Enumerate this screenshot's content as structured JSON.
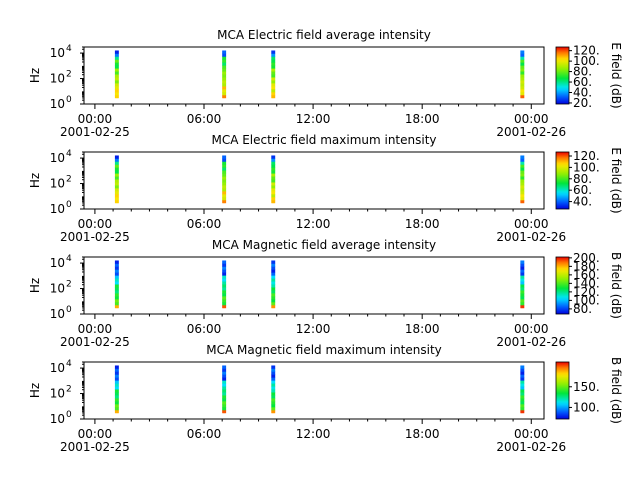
{
  "chart_data": [
    {
      "type": "heatmap",
      "title": "MCA  Electric field average intensity",
      "ylabel": "Hz",
      "yscale": "log",
      "ylim": [
        1,
        30000
      ],
      "y_ticks": [
        {
          "base": "10",
          "exp": "0"
        },
        {
          "base": "10",
          "exp": "2"
        },
        {
          "base": "10",
          "exp": "4"
        }
      ],
      "x_ticks": [
        "00:00",
        "06:00",
        "12:00",
        "18:00",
        "00:00"
      ],
      "x_dates": [
        {
          "at": "00:00",
          "date": "2001-02-25"
        },
        {
          "at": "00:00",
          "date": "2001-02-26"
        }
      ],
      "xlim_hours": [
        -0.6,
        24.7
      ],
      "colorbar": {
        "label": "E field (dB)",
        "range": [
          18,
          127
        ],
        "ticks": [
          "20.",
          "40.",
          "60.",
          "80.",
          "100.",
          "120."
        ]
      },
      "data_intervals_hours": [
        [
          1.1,
          1.3
        ],
        [
          7.0,
          7.2
        ],
        [
          9.7,
          9.9
        ],
        [
          23.4,
          23.6
        ]
      ],
      "profile": "electric"
    },
    {
      "type": "heatmap",
      "title": "MCA  Electric field maximum intensity",
      "ylabel": "Hz",
      "yscale": "log",
      "ylim": [
        1,
        30000
      ],
      "y_ticks": [
        {
          "base": "10",
          "exp": "0"
        },
        {
          "base": "10",
          "exp": "2"
        },
        {
          "base": "10",
          "exp": "4"
        }
      ],
      "x_ticks": [
        "00:00",
        "06:00",
        "12:00",
        "18:00",
        "00:00"
      ],
      "x_dates": [
        {
          "at": "00:00",
          "date": "2001-02-25"
        },
        {
          "at": "00:00",
          "date": "2001-02-26"
        }
      ],
      "xlim_hours": [
        -0.6,
        24.7
      ],
      "colorbar": {
        "label": "E field (dB)",
        "range": [
          27,
          127
        ],
        "ticks": [
          "40.",
          "60.",
          "80.",
          "100.",
          "120."
        ]
      },
      "data_intervals_hours": [
        [
          1.1,
          1.3
        ],
        [
          7.0,
          7.2
        ],
        [
          9.7,
          9.9
        ],
        [
          23.4,
          23.6
        ]
      ],
      "profile": "electric"
    },
    {
      "type": "heatmap",
      "title": "MCA  Magnetic field average intensity",
      "ylabel": "Hz",
      "yscale": "log",
      "ylim": [
        1,
        30000
      ],
      "y_ticks": [
        {
          "base": "10",
          "exp": "0"
        },
        {
          "base": "10",
          "exp": "2"
        },
        {
          "base": "10",
          "exp": "4"
        }
      ],
      "x_ticks": [
        "00:00",
        "06:00",
        "12:00",
        "18:00",
        "00:00"
      ],
      "x_dates": [
        {
          "at": "00:00",
          "date": "2001-02-25"
        },
        {
          "at": "00:00",
          "date": "2001-02-26"
        }
      ],
      "xlim_hours": [
        -0.6,
        24.7
      ],
      "colorbar": {
        "label": "B field (dB)",
        "range": [
          68,
          202
        ],
        "ticks": [
          "80.",
          "100.",
          "120.",
          "140.",
          "160.",
          "180.",
          "200."
        ]
      },
      "data_intervals_hours": [
        [
          1.1,
          1.3
        ],
        [
          7.0,
          7.2
        ],
        [
          9.7,
          9.9
        ],
        [
          23.4,
          23.6
        ]
      ],
      "profile": "magnetic"
    },
    {
      "type": "heatmap",
      "title": "MCA  Magnetic field maximum intensity",
      "ylabel": "Hz",
      "yscale": "log",
      "ylim": [
        1,
        30000
      ],
      "y_ticks": [
        {
          "base": "10",
          "exp": "0"
        },
        {
          "base": "10",
          "exp": "2"
        },
        {
          "base": "10",
          "exp": "4"
        }
      ],
      "x_ticks": [
        "00:00",
        "06:00",
        "12:00",
        "18:00",
        "00:00"
      ],
      "x_dates": [
        {
          "at": "00:00",
          "date": "2001-02-25"
        },
        {
          "at": "00:00",
          "date": "2001-02-26"
        }
      ],
      "xlim_hours": [
        -0.6,
        24.7
      ],
      "colorbar": {
        "label": "B field (dB)",
        "range": [
          72,
          210
        ],
        "ticks": [
          "100.",
          "150."
        ]
      },
      "data_intervals_hours": [
        [
          1.1,
          1.3
        ],
        [
          7.0,
          7.2
        ],
        [
          9.7,
          9.9
        ],
        [
          23.4,
          23.6
        ]
      ],
      "profile": "magnetic"
    }
  ]
}
